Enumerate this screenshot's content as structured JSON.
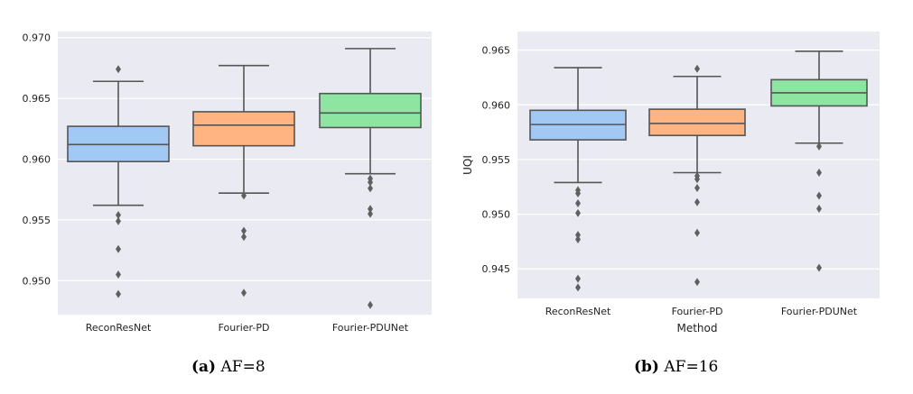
{
  "chart_data": [
    {
      "type": "box",
      "caption_tag": "(a)",
      "caption_text": "AF=8",
      "xlabel": "",
      "ylabel": "",
      "ylim": [
        0.9472,
        0.9705
      ],
      "yticks": [
        "0.950",
        "0.955",
        "0.960",
        "0.965",
        "0.970"
      ],
      "ytick_values": [
        0.95,
        0.955,
        0.96,
        0.965,
        0.97
      ],
      "grid": true,
      "categories": [
        "ReconResNet",
        "Fourier-PD",
        "Fourier-PDUNet"
      ],
      "colors": [
        "#a1c9f4",
        "#ffb482",
        "#8de5a1"
      ],
      "boxes": [
        {
          "whisker_low": 0.9562,
          "q1": 0.9598,
          "median": 0.9612,
          "q3": 0.9627,
          "whisker_high": 0.9664,
          "outliers": [
            0.9674,
            0.9554,
            0.9549,
            0.9526,
            0.9505,
            0.9489
          ]
        },
        {
          "whisker_low": 0.9572,
          "q1": 0.9611,
          "median": 0.9628,
          "q3": 0.9639,
          "whisker_high": 0.9677,
          "outliers": [
            0.957,
            0.9541,
            0.9536,
            0.949
          ]
        },
        {
          "whisker_low": 0.9588,
          "q1": 0.9626,
          "median": 0.9638,
          "q3": 0.9654,
          "whisker_high": 0.9691,
          "outliers": [
            0.9584,
            0.9581,
            0.9576,
            0.9559,
            0.9555,
            0.948
          ]
        }
      ]
    },
    {
      "type": "box",
      "caption_tag": "(b)",
      "caption_text": "AF=16",
      "xlabel": "Method",
      "ylabel": "UQI",
      "ylim": [
        0.9423,
        0.9667
      ],
      "yticks": [
        "0.945",
        "0.950",
        "0.955",
        "0.960",
        "0.965"
      ],
      "ytick_values": [
        0.945,
        0.95,
        0.955,
        0.96,
        0.965
      ],
      "grid": true,
      "categories": [
        "ReconResNet",
        "Fourier-PD",
        "Fourier-PDUNet"
      ],
      "colors": [
        "#a1c9f4",
        "#ffb482",
        "#8de5a1"
      ],
      "boxes": [
        {
          "whisker_low": 0.9529,
          "q1": 0.9568,
          "median": 0.9582,
          "q3": 0.9595,
          "whisker_high": 0.9634,
          "outliers": [
            0.9522,
            0.9519,
            0.951,
            0.9501,
            0.9481,
            0.9477,
            0.9441,
            0.9433
          ]
        },
        {
          "whisker_low": 0.9538,
          "q1": 0.9572,
          "median": 0.9583,
          "q3": 0.9596,
          "whisker_high": 0.9626,
          "outliers": [
            0.9633,
            0.9535,
            0.9532,
            0.9524,
            0.9511,
            0.9483,
            0.9438
          ]
        },
        {
          "whisker_low": 0.9565,
          "q1": 0.9599,
          "median": 0.9611,
          "q3": 0.9623,
          "whisker_high": 0.9649,
          "outliers": [
            0.9562,
            0.9538,
            0.9517,
            0.9505,
            0.9451
          ]
        }
      ]
    }
  ]
}
